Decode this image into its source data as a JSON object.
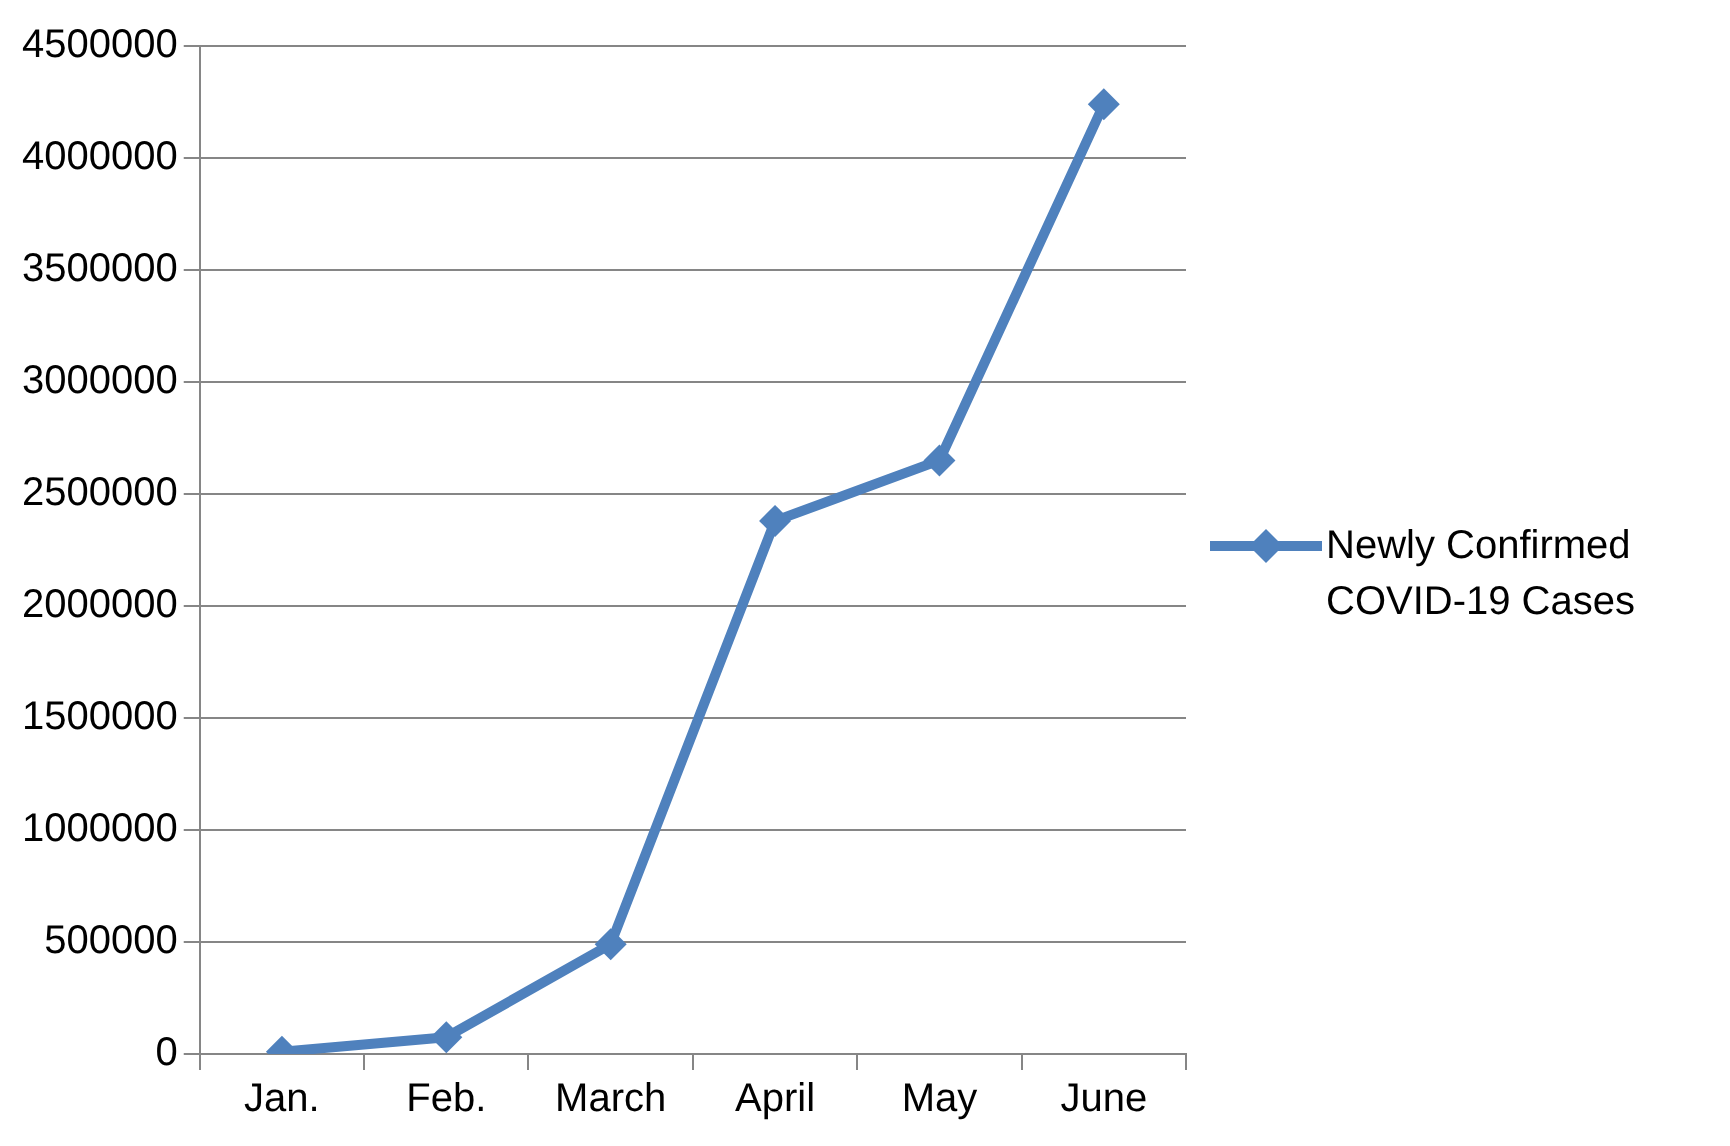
{
  "chart_data": {
    "type": "line",
    "categories": [
      "Jan.",
      "Feb.",
      "March",
      "April",
      "May",
      "June"
    ],
    "series": [
      {
        "name": "Newly Confirmed COVID-19 Cases",
        "color": "#4f81bd",
        "values": [
          10000,
          75000,
          490000,
          2380000,
          2650000,
          4240000
        ]
      }
    ],
    "ylim": [
      0,
      4500000
    ],
    "yticks": [
      0,
      500000,
      1000000,
      1500000,
      2000000,
      2500000,
      3000000,
      3500000,
      4000000,
      4500000
    ],
    "grid": "y",
    "legend": "right",
    "marker": "diamond",
    "line_style": "solid"
  }
}
